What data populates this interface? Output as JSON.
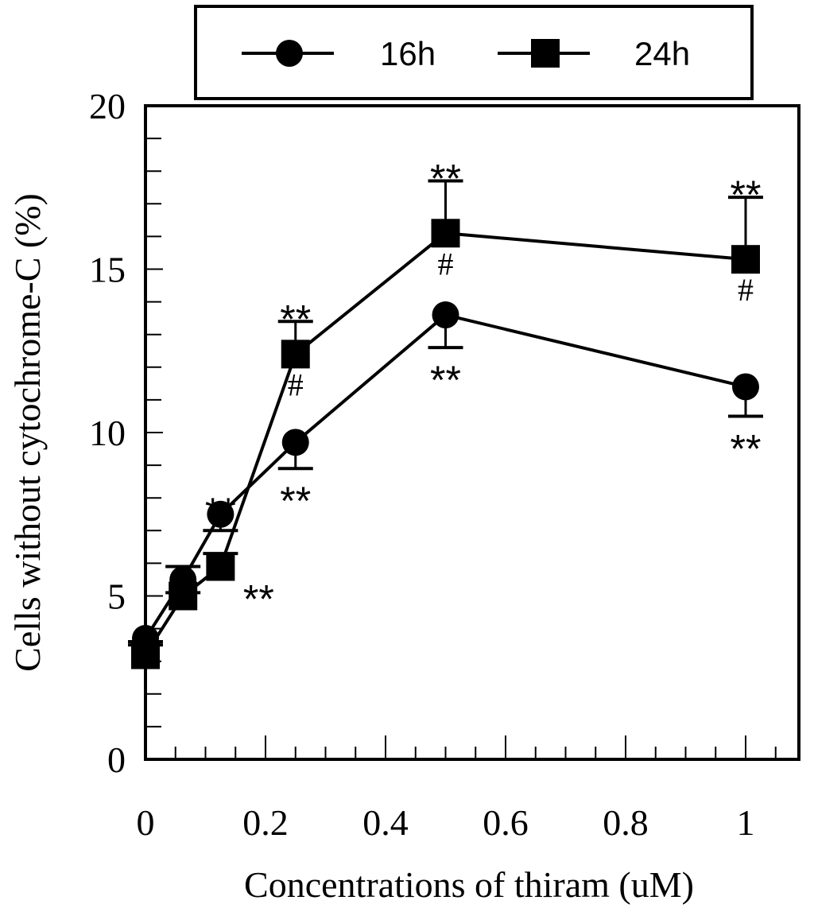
{
  "chart_data": {
    "type": "line",
    "title": "",
    "xlabel": "Concentrations of thiram (uM)",
    "ylabel": "Cells without cytochrome-C (%)",
    "xlim": [
      0,
      1.1
    ],
    "ylim": [
      0,
      20
    ],
    "xticks": [
      0,
      0.2,
      0.4,
      0.6,
      0.8,
      1
    ],
    "xtick_labels": [
      "0",
      "0.2",
      "0.4",
      "0.6",
      "0.8",
      "1"
    ],
    "yticks": [
      0,
      5,
      10,
      15,
      20
    ],
    "ytick_labels": [
      "0",
      "5",
      "10",
      "15",
      "20"
    ],
    "legend_position": "top",
    "series": [
      {
        "name": "16h",
        "marker": "circle",
        "color": "#000000",
        "x": [
          0,
          0.0625,
          0.125,
          0.25,
          0.5,
          1
        ],
        "y": [
          3.7,
          5.5,
          7.5,
          9.7,
          13.6,
          11.4
        ],
        "error": [
          0.2,
          0.4,
          0.5,
          0.8,
          1.0,
          0.9
        ],
        "error_direction": "down",
        "annotations": [
          {
            "x": 0.125,
            "text": "**",
            "where": "above"
          },
          {
            "x": 0.25,
            "text": "**",
            "where": "below"
          },
          {
            "x": 0.5,
            "text": "**",
            "where": "below"
          },
          {
            "x": 1,
            "text": "**",
            "where": "below"
          }
        ]
      },
      {
        "name": "24h",
        "marker": "square",
        "color": "#000000",
        "x": [
          0,
          0.0625,
          0.125,
          0.25,
          0.5,
          1
        ],
        "y": [
          3.2,
          5.0,
          5.9,
          12.4,
          16.1,
          15.3
        ],
        "error": [
          0.4,
          0.9,
          0.4,
          1.0,
          1.6,
          1.9
        ],
        "error_direction": "up",
        "annotations": [
          {
            "x": 0.125,
            "text": "**",
            "where": "right"
          },
          {
            "x": 0.25,
            "text": "**",
            "where": "above"
          },
          {
            "x": 0.25,
            "text": "#",
            "where": "below"
          },
          {
            "x": 0.5,
            "text": "**",
            "where": "above"
          },
          {
            "x": 0.5,
            "text": "#",
            "where": "below"
          },
          {
            "x": 1,
            "text": "**",
            "where": "above"
          },
          {
            "x": 1,
            "text": "#",
            "where": "below"
          }
        ]
      }
    ]
  }
}
